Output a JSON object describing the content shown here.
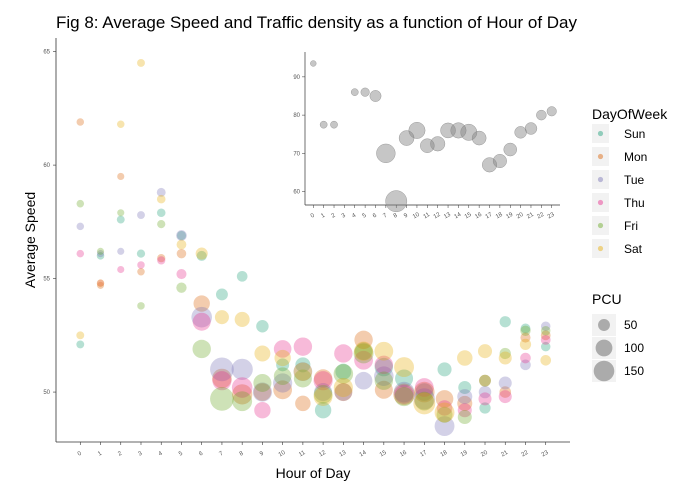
{
  "chart_data": [
    {
      "type": "scatter",
      "title": "Fig 8: Average Speed and Traffic density as a function of Hour of Day",
      "xlabel": "Hour of Day",
      "ylabel": "Average Speed",
      "xlim": [
        -1.2,
        24.2
      ],
      "ylim": [
        47.8,
        65.6
      ],
      "x_ticks": [
        0,
        1,
        2,
        3,
        4,
        5,
        6,
        7,
        8,
        9,
        10,
        11,
        12,
        13,
        14,
        15,
        16,
        17,
        18,
        19,
        20,
        21,
        22,
        23
      ],
      "y_ticks": [
        50,
        55,
        60,
        65
      ],
      "grid": false,
      "size_var": "PCU",
      "series": [
        {
          "name": "Sun",
          "color": "#1b9e77",
          "x": [
            0,
            1,
            2,
            3,
            4,
            5,
            6,
            7,
            8,
            9,
            10,
            11,
            12,
            13,
            14,
            15,
            16,
            17,
            18,
            19,
            20,
            21,
            22,
            23
          ],
          "y": [
            52.1,
            56.0,
            57.6,
            56.1,
            57.9,
            56.9,
            56.0,
            54.3,
            55.1,
            52.9,
            51.2,
            51.2,
            49.2,
            50.9,
            51.8,
            51.1,
            50.6,
            50.0,
            51.0,
            50.2,
            49.3,
            53.1,
            52.8,
            52.0
          ],
          "pcu": [
            22,
            20,
            22,
            24,
            26,
            30,
            36,
            50,
            40,
            55,
            60,
            80,
            95,
            90,
            110,
            120,
            115,
            110,
            70,
            60,
            45,
            45,
            35,
            32
          ]
        },
        {
          "name": "Mon",
          "color": "#d95f02",
          "x": [
            0,
            1,
            2,
            3,
            4,
            5,
            6,
            7,
            8,
            9,
            10,
            11,
            12,
            13,
            14,
            15,
            16,
            17,
            18,
            19,
            20,
            21,
            22,
            23
          ],
          "y": [
            61.9,
            54.7,
            59.5,
            55.3,
            55.9,
            56.1,
            53.9,
            50.6,
            49.9,
            50.0,
            50.1,
            49.5,
            50.6,
            50.0,
            52.3,
            50.1,
            49.9,
            50.0,
            49.7,
            49.5,
            50.5,
            50.0,
            52.4,
            52.5
          ],
          "pcu": [
            20,
            18,
            18,
            20,
            24,
            32,
            95,
            135,
            145,
            110,
            125,
            85,
            120,
            115,
            120,
            115,
            165,
            150,
            110,
            80,
            50,
            48,
            36,
            34
          ]
        },
        {
          "name": "Tue",
          "color": "#7570b3",
          "x": [
            0,
            1,
            2,
            3,
            4,
            5,
            6,
            7,
            8,
            9,
            10,
            11,
            12,
            13,
            14,
            15,
            16,
            17,
            18,
            19,
            20,
            21,
            22,
            23
          ],
          "y": [
            57.3,
            56.1,
            56.2,
            57.8,
            58.8,
            56.9,
            53.3,
            51.0,
            51.0,
            50.0,
            50.4,
            50.9,
            50.0,
            50.0,
            50.5,
            50.7,
            50.0,
            49.7,
            48.5,
            49.8,
            50.0,
            50.4,
            51.2,
            52.9
          ],
          "pcu": [
            20,
            18,
            18,
            22,
            28,
            40,
            150,
            200,
            160,
            130,
            130,
            125,
            115,
            110,
            110,
            135,
            150,
            160,
            140,
            80,
            55,
            60,
            40,
            32
          ]
        },
        {
          "name": "Thu",
          "color": "#e7298a",
          "x": [
            0,
            1,
            2,
            3,
            4,
            5,
            6,
            7,
            8,
            9,
            10,
            11,
            12,
            13,
            14,
            15,
            16,
            17,
            18,
            19,
            20,
            21,
            22,
            23
          ],
          "y": [
            56.1,
            54.8,
            55.4,
            55.6,
            55.8,
            55.2,
            53.1,
            50.5,
            50.2,
            49.2,
            51.9,
            52.0,
            50.5,
            51.7,
            51.4,
            51.2,
            49.9,
            50.2,
            49.3,
            49.2,
            49.7,
            49.8,
            51.5,
            52.3
          ],
          "pcu": [
            20,
            18,
            18,
            20,
            24,
            36,
            115,
            130,
            150,
            95,
            110,
            120,
            130,
            120,
            125,
            120,
            130,
            125,
            85,
            70,
            60,
            60,
            40,
            34
          ]
        },
        {
          "name": "Fri",
          "color": "#66a61e",
          "x": [
            0,
            1,
            2,
            3,
            4,
            5,
            6,
            7,
            8,
            9,
            10,
            11,
            12,
            13,
            14,
            15,
            16,
            17,
            18,
            19,
            20,
            21,
            22,
            23
          ],
          "y": [
            58.3,
            56.2,
            57.9,
            53.8,
            57.4,
            54.6,
            51.9,
            49.7,
            49.6,
            50.4,
            50.7,
            50.6,
            49.9,
            50.8,
            51.7,
            50.5,
            49.8,
            49.6,
            49.0,
            48.9,
            50.5,
            51.7,
            52.7,
            52.7
          ],
          "pcu": [
            20,
            18,
            18,
            20,
            24,
            38,
            120,
            200,
            140,
            115,
            110,
            115,
            125,
            135,
            140,
            120,
            130,
            125,
            90,
            70,
            50,
            45,
            38,
            32
          ]
        },
        {
          "name": "Sat",
          "color": "#e6ab02",
          "x": [
            0,
            1,
            2,
            3,
            4,
            5,
            6,
            7,
            8,
            9,
            10,
            11,
            12,
            13,
            14,
            15,
            16,
            17,
            18,
            19,
            20,
            21,
            22,
            23
          ],
          "y": [
            52.5,
            54.8,
            61.8,
            64.5,
            58.5,
            56.5,
            56.1,
            53.3,
            53.2,
            51.7,
            51.5,
            50.9,
            49.8,
            50.2,
            51.8,
            51.8,
            51.1,
            49.5,
            49.1,
            51.5,
            51.8,
            51.5,
            52.1,
            51.4
          ],
          "pcu": [
            22,
            20,
            20,
            22,
            26,
            34,
            52,
            70,
            80,
            90,
            95,
            120,
            125,
            130,
            130,
            125,
            140,
            170,
            140,
            85,
            70,
            60,
            45,
            40
          ]
        }
      ],
      "legend": {
        "title": "DayOfWeek",
        "position": "right"
      },
      "size_legend": {
        "title": "PCU",
        "values": [
          50,
          100,
          150
        ],
        "position": "right"
      }
    },
    {
      "type": "scatter",
      "title": "",
      "xlabel": "",
      "ylabel": "",
      "xlim": [
        -0.8,
        23.8
      ],
      "ylim": [
        56.5,
        96.5
      ],
      "x_ticks": [
        0,
        1,
        2,
        3,
        4,
        5,
        6,
        7,
        8,
        9,
        10,
        11,
        12,
        13,
        14,
        15,
        16,
        17,
        18,
        19,
        20,
        21,
        22,
        23
      ],
      "y_ticks": [
        60,
        70,
        80,
        90
      ],
      "color": "#808080",
      "x": [
        0,
        1,
        2,
        3,
        4,
        5,
        6,
        7,
        8,
        9,
        10,
        11,
        12,
        13,
        14,
        15,
        16,
        17,
        18,
        19,
        20,
        21,
        22,
        23
      ],
      "y": [
        93.5,
        77.5,
        77.5,
        null,
        86.0,
        86.0,
        85.0,
        70.0,
        57.5,
        74.0,
        76.0,
        72.0,
        72.5,
        76.0,
        76.0,
        75.5,
        74.0,
        67.0,
        68.0,
        71.0,
        75.5,
        76.5,
        80.0,
        81.0
      ],
      "pcu": [
        12,
        18,
        18,
        null,
        18,
        26,
        45,
        125,
        160,
        80,
        95,
        70,
        75,
        80,
        85,
        95,
        70,
        75,
        65,
        60,
        50,
        50,
        35,
        32
      ]
    }
  ]
}
